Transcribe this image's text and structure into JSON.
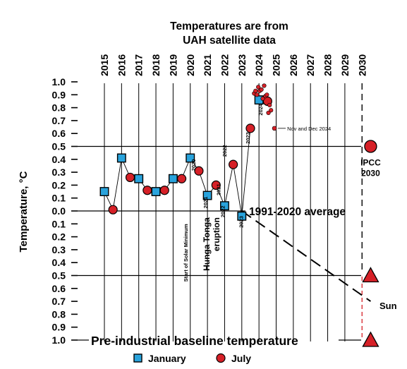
{
  "chart_data": {
    "type": "scatter",
    "title_lines": [
      "Temperatures are from",
      "UAH satellite data"
    ],
    "ylabel": "Temperature, °C",
    "years": [
      "2015",
      "2016",
      "2017",
      "2018",
      "2019",
      "2020",
      "2021",
      "2022",
      "2023",
      "2024",
      "2025",
      "2026",
      "2027",
      "2028",
      "2029",
      "2030"
    ],
    "y_ticks_upper": [
      "1.0",
      "0.9",
      "0.8",
      "0.7",
      "0.6",
      "0.5",
      "0.4",
      "0.3",
      "0.2",
      "0.1",
      "0.0"
    ],
    "y_ticks_lower": [
      "0.1",
      "0.2",
      "0.3",
      "0.4",
      "0.5",
      "0.6",
      "0.7",
      "0.8",
      "0.9"
    ],
    "bottom_tick": "1.0",
    "ylim": [
      -1.0,
      1.0
    ],
    "grid": true,
    "series": [
      {
        "name": "January",
        "marker": "square",
        "color": "#29a3dc",
        "x": [
          2015.0,
          2016.0,
          2017.0,
          2018.0,
          2019.0,
          2020.0,
          2021.0,
          2022.0,
          2023.0,
          2024.0
        ],
        "y": [
          0.15,
          0.41,
          0.25,
          0.15,
          0.25,
          0.41,
          0.12,
          0.04,
          -0.04,
          0.86
        ]
      },
      {
        "name": "July",
        "marker": "circle",
        "color": "#d62027",
        "x": [
          2015.5,
          2016.5,
          2017.5,
          2018.5,
          2019.5,
          2020.5,
          2021.5,
          2022.5,
          2023.5,
          2024.5
        ],
        "y": [
          0.01,
          0.26,
          0.16,
          0.16,
          0.25,
          0.31,
          0.2,
          0.36,
          0.64,
          0.85
        ]
      },
      {
        "name": "monthly-2024",
        "marker": "small-circle",
        "color": "#d62027",
        "x": [
          2023.72,
          2023.8,
          2023.88,
          2023.96,
          2024.04,
          2024.14,
          2024.22,
          2024.3,
          2024.38,
          2024.46,
          2024.55,
          2024.62,
          2024.7
        ],
        "y": [
          0.91,
          0.93,
          0.9,
          0.96,
          0.93,
          0.94,
          0.87,
          0.97,
          0.89,
          0.9,
          0.76,
          0.82,
          0.78
        ]
      }
    ],
    "nov_dec_2024": {
      "x": 2024.9,
      "y": 0.64
    },
    "ipcc_point": {
      "x": 2030.5,
      "y": 0.5
    },
    "sun_points": [
      {
        "x": 2030.5,
        "y": -0.5
      },
      {
        "x": 2030.5,
        "y": -1.0
      }
    ],
    "trend_start": {
      "x": 2023.0,
      "y": 0.0
    },
    "trend_end": {
      "x": 2030.5,
      "y": -0.7
    },
    "reference_lines": [
      {
        "y": 0.5
      },
      {
        "y": 0.0,
        "label": "1991-2020 average"
      },
      {
        "y": -0.5
      },
      {
        "y": -1.0,
        "label": "Pre-industrial baseline temperature"
      }
    ],
    "annotations": {
      "nov_dec": "Nov and Dec 2024",
      "ipcc_line1": "IPCC",
      "ipcc_line2": "2030",
      "sun": "Sun",
      "solar_min": "Start of Solar Minimum",
      "hunga_line1": "Hunga Tonga",
      "hunga_line2": "eruption"
    },
    "year_labels": [
      {
        "text": "2020",
        "x": 2020.3,
        "y": 0.31
      },
      {
        "text": "2021",
        "x": 2021.0,
        "y": 0.02
      },
      {
        "text": "2021",
        "x": 2021.75,
        "y": 0.12
      },
      {
        "text": "2022",
        "x": 2022.1,
        "y": 0.42
      },
      {
        "text": "2022",
        "x": 2022.0,
        "y": -0.05
      },
      {
        "text": "2023",
        "x": 2023.08,
        "y": -0.13
      },
      {
        "text": "2023",
        "x": 2023.45,
        "y": 0.52
      },
      {
        "text": "2024",
        "x": 2024.2,
        "y": 0.74
      }
    ],
    "legend": [
      {
        "label": "January",
        "marker": "square",
        "color": "#29a3dc"
      },
      {
        "label": "July",
        "marker": "circle",
        "color": "#d62027"
      }
    ]
  }
}
